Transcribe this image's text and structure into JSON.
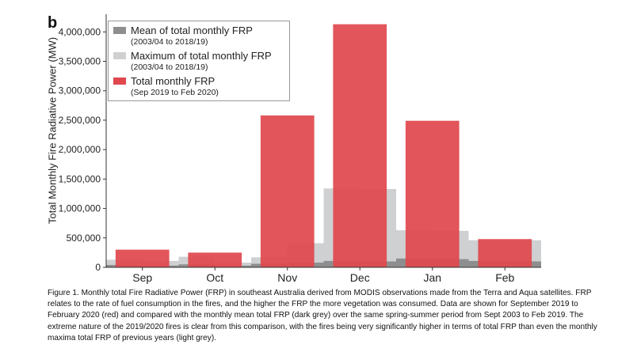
{
  "panel_label": "b",
  "colors": {
    "mean": "#8e8e8e",
    "maximum": "#cfd0d2",
    "total": "#e0484e"
  },
  "chart_data": {
    "type": "bar",
    "ylabel": "Total Monthly Fire Radiative Power (MW)",
    "xlabel": "",
    "ylim": [
      0,
      4300000
    ],
    "yticks": [
      0,
      500000,
      1000000,
      1500000,
      2000000,
      2500000,
      3000000,
      3500000,
      4000000
    ],
    "ytick_labels": [
      "0",
      "500,000",
      "1,000,000",
      "1,500,000",
      "2,000,000",
      "2,500,000",
      "3,000,000",
      "3,500,000",
      "4,000,000"
    ],
    "grid": false,
    "legend_position": "top-left",
    "categories": [
      "Sep",
      "Oct",
      "Nov",
      "Dec",
      "Jan",
      "Feb"
    ],
    "series": [
      {
        "name": "Total monthly FRP",
        "subtitle": "(Sep 2019 to Feb 2020)",
        "values": [
          300000,
          250000,
          2580000,
          4130000,
          2490000,
          480000
        ]
      }
    ],
    "background_series": [
      {
        "name": "Maximum of total monthly FRP",
        "subtitle": "(2003/04 to 2018/19)",
        "x": [
          8.5,
          9,
          9.5,
          10,
          10.5,
          11,
          11.5,
          12,
          12.5,
          13,
          13.5,
          14,
          14.5
        ],
        "values": [
          130000,
          110000,
          180000,
          80000,
          170000,
          410000,
          1340000,
          1330000,
          630000,
          620000,
          460000,
          460000,
          470000
        ]
      },
      {
        "name": "Mean of total monthly FRP",
        "subtitle": "(2003/04 to 2018/19)",
        "x": [
          8.5,
          9,
          9.5,
          10,
          10.5,
          11,
          11.5,
          12,
          12.5,
          13,
          13.5,
          14,
          14.5
        ],
        "values": [
          40000,
          30000,
          50000,
          30000,
          60000,
          80000,
          110000,
          100000,
          150000,
          140000,
          110000,
          100000,
          110000
        ]
      }
    ]
  },
  "legend": [
    {
      "name": "Mean of total monthly FRP",
      "sub": "(2003/04 to 2018/19)"
    },
    {
      "name": "Maximum of total monthly FRP",
      "sub": "(2003/04 to 2018/19)"
    },
    {
      "name": "Total monthly FRP",
      "sub": "(Sep 2019 to Feb 2020)"
    }
  ],
  "caption": "Figure 1.  Monthly total Fire Radiative Power (FRP) in southeast Australia derived from MODIS observations made from the Terra and Aqua satellites. FRP relates to the rate of fuel consumption in the fires, and the higher the FRP the more vegetation was consumed. Data are shown for September 2019 to February 2020 (red) and compared with the monthly mean total FRP (dark grey) over the same spring-summer period from Sept 2003 to Feb 2019. The extreme nature of the 2019/2020 fires is clear from this comparison, with the fires being very significantly higher in terms of total FRP than even the monthly maxima total FRP of previous years (light grey)."
}
